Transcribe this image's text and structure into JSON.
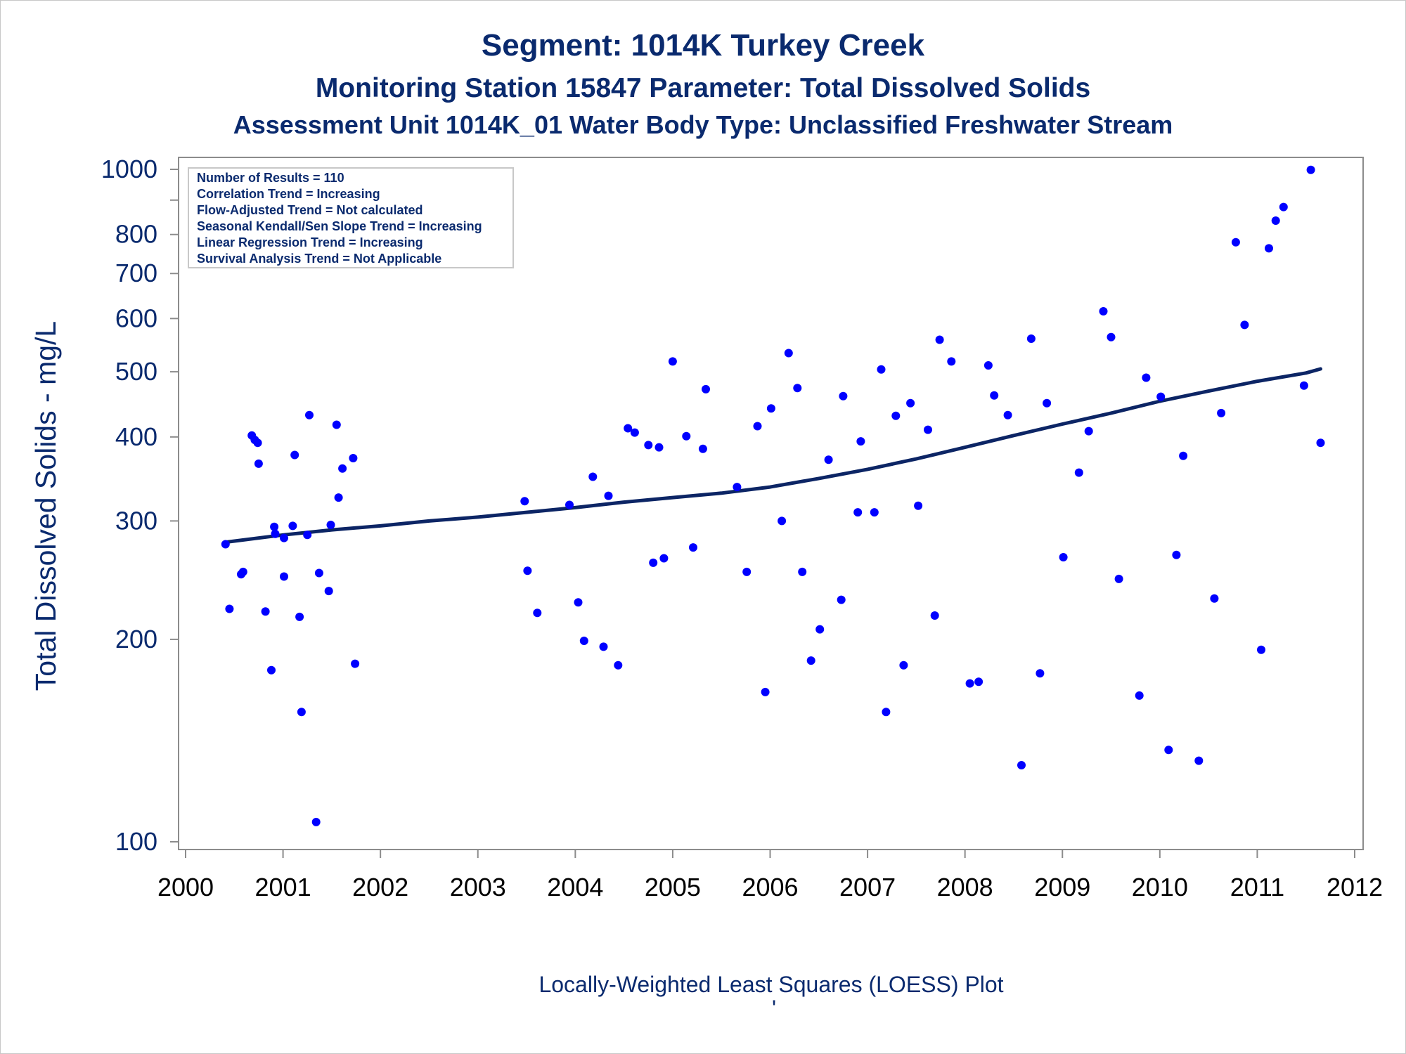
{
  "colors": {
    "text": "#0a2a6e",
    "points": "#0000ff",
    "trend_line": "#0c2565",
    "axis": "#8c8c8c",
    "tick_text_y": "#0a2a6e",
    "tick_text_x": "#000000"
  },
  "footnote": "Locally-Weighted Least Squares (LOESS) Plot",
  "stray_mark": "'",
  "stats_box": {
    "lines": [
      "Number of Results = 110",
      "Correlation Trend = Increasing",
      "Flow-Adjusted Trend = Not calculated",
      "Seasonal Kendall/Sen Slope Trend = Increasing",
      "Linear Regression Trend = Increasing",
      "Survival Analysis Trend = Not Applicable"
    ]
  },
  "chart_data": {
    "type": "scatter",
    "title": "Segment: 1014K  Turkey Creek",
    "subtitle": "Monitoring Station 15847 Parameter: Total Dissolved Solids",
    "subtitle2": "Assessment Unit 1014K_01   Water Body Type: Unclassified Freshwater Stream",
    "xlabel": "",
    "ylabel": "Total Dissolved Solids - mg/L",
    "xlim": [
      2000,
      2012
    ],
    "ylim": [
      96,
      1040
    ],
    "yscale": "log",
    "xticks": [
      2000,
      2001,
      2002,
      2003,
      2004,
      2005,
      2006,
      2007,
      2008,
      2009,
      2010,
      2011,
      2012
    ],
    "yticks_labeled": [
      100,
      200,
      300,
      400,
      500,
      600,
      700,
      800,
      1000
    ],
    "yticks_minor": [
      900
    ],
    "grid": false,
    "series": [
      {
        "type": "scatter",
        "points": [
          [
            2000.41,
            277
          ],
          [
            2000.45,
            222
          ],
          [
            2000.57,
            250
          ],
          [
            2000.59,
            252
          ],
          [
            2000.68,
            402
          ],
          [
            2000.71,
            396
          ],
          [
            2000.74,
            392
          ],
          [
            2000.75,
            365
          ],
          [
            2000.82,
            220
          ],
          [
            2000.88,
            180
          ],
          [
            2000.91,
            294
          ],
          [
            2000.92,
            287
          ],
          [
            2001.01,
            283
          ],
          [
            2001.01,
            248
          ],
          [
            2001.1,
            295
          ],
          [
            2001.12,
            376
          ],
          [
            2001.17,
            216
          ],
          [
            2001.19,
            156
          ],
          [
            2001.25,
            286
          ],
          [
            2001.27,
            431
          ],
          [
            2001.34,
            107
          ],
          [
            2001.37,
            251
          ],
          [
            2001.47,
            236
          ],
          [
            2001.49,
            296
          ],
          [
            2001.55,
            417
          ],
          [
            2001.57,
            325
          ],
          [
            2001.61,
            359
          ],
          [
            2001.72,
            372
          ],
          [
            2001.74,
            184
          ],
          [
            2003.48,
            321
          ],
          [
            2003.51,
            253
          ],
          [
            2003.61,
            219
          ],
          [
            2003.94,
            317
          ],
          [
            2004.03,
            227
          ],
          [
            2004.09,
            199
          ],
          [
            2004.18,
            349
          ],
          [
            2004.29,
            195
          ],
          [
            2004.34,
            327
          ],
          [
            2004.44,
            183
          ],
          [
            2004.54,
            412
          ],
          [
            2004.61,
            406
          ],
          [
            2004.75,
            389
          ],
          [
            2004.8,
            260
          ],
          [
            2004.86,
            386
          ],
          [
            2004.91,
            264
          ],
          [
            2005.0,
            518
          ],
          [
            2005.14,
            401
          ],
          [
            2005.21,
            274
          ],
          [
            2005.31,
            384
          ],
          [
            2005.34,
            471
          ],
          [
            2005.66,
            337
          ],
          [
            2005.76,
            252
          ],
          [
            2005.87,
            415
          ],
          [
            2005.95,
            167
          ],
          [
            2006.01,
            441
          ],
          [
            2006.12,
            300
          ],
          [
            2006.19,
            533
          ],
          [
            2006.28,
            473
          ],
          [
            2006.33,
            252
          ],
          [
            2006.42,
            186
          ],
          [
            2006.51,
            207
          ],
          [
            2006.6,
            370
          ],
          [
            2006.73,
            229
          ],
          [
            2006.75,
            460
          ],
          [
            2006.9,
            309
          ],
          [
            2006.93,
            394
          ],
          [
            2007.07,
            309
          ],
          [
            2007.14,
            504
          ],
          [
            2007.19,
            156
          ],
          [
            2007.29,
            430
          ],
          [
            2007.37,
            183
          ],
          [
            2007.44,
            449
          ],
          [
            2007.52,
            316
          ],
          [
            2007.62,
            410
          ],
          [
            2007.69,
            217
          ],
          [
            2007.74,
            558
          ],
          [
            2007.86,
            518
          ],
          [
            2008.05,
            172
          ],
          [
            2008.14,
            173
          ],
          [
            2008.24,
            511
          ],
          [
            2008.3,
            461
          ],
          [
            2008.44,
            431
          ],
          [
            2008.58,
            130
          ],
          [
            2008.68,
            560
          ],
          [
            2008.77,
            178
          ],
          [
            2008.84,
            449
          ],
          [
            2009.01,
            265
          ],
          [
            2009.17,
            354
          ],
          [
            2009.27,
            408
          ],
          [
            2009.42,
            615
          ],
          [
            2009.5,
            563
          ],
          [
            2009.58,
            246
          ],
          [
            2009.79,
            165
          ],
          [
            2009.86,
            490
          ],
          [
            2010.01,
            459
          ],
          [
            2010.09,
            137
          ],
          [
            2010.17,
            267
          ],
          [
            2010.24,
            375
          ],
          [
            2010.4,
            132
          ],
          [
            2010.56,
            230
          ],
          [
            2010.63,
            434
          ],
          [
            2010.78,
            779
          ],
          [
            2010.87,
            587
          ],
          [
            2011.04,
            193
          ],
          [
            2011.12,
            763
          ],
          [
            2011.19,
            839
          ],
          [
            2011.27,
            879
          ],
          [
            2011.48,
            477
          ],
          [
            2011.55,
            998
          ],
          [
            2011.65,
            392
          ]
        ]
      },
      {
        "type": "line",
        "name": "LOESS",
        "points": [
          [
            2000.41,
            279
          ],
          [
            2001.0,
            286
          ],
          [
            2001.5,
            291
          ],
          [
            2002.0,
            295
          ],
          [
            2002.5,
            300
          ],
          [
            2003.0,
            304
          ],
          [
            2003.5,
            309
          ],
          [
            2004.0,
            314
          ],
          [
            2004.5,
            320
          ],
          [
            2005.0,
            325
          ],
          [
            2005.5,
            330
          ],
          [
            2006.0,
            337
          ],
          [
            2006.5,
            347
          ],
          [
            2007.0,
            358
          ],
          [
            2007.5,
            371
          ],
          [
            2008.0,
            386
          ],
          [
            2008.5,
            402
          ],
          [
            2009.0,
            418
          ],
          [
            2009.5,
            434
          ],
          [
            2010.0,
            452
          ],
          [
            2010.5,
            468
          ],
          [
            2011.0,
            484
          ],
          [
            2011.5,
            498
          ],
          [
            2011.65,
            505
          ]
        ]
      }
    ]
  }
}
